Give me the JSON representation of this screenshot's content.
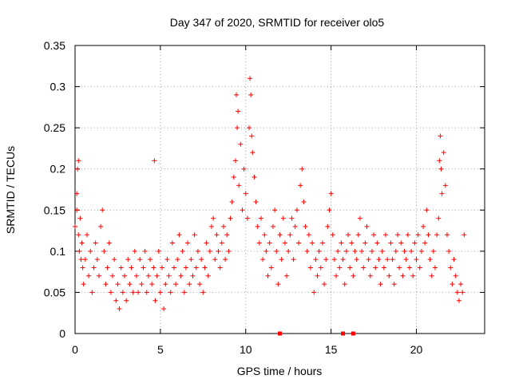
{
  "chart_data": {
    "type": "scatter",
    "title": "Day 347 of 2020, SRMTID for receiver olo5",
    "xlabel": "GPS time / hours",
    "ylabel": "SRMTID / TECUs",
    "xlim": [
      0,
      24
    ],
    "ylim": [
      0,
      0.35
    ],
    "xticks": [
      0,
      5,
      10,
      15,
      20
    ],
    "yticks": [
      0,
      0.05,
      0.1,
      0.15,
      0.2,
      0.25,
      0.3,
      0.35
    ],
    "ytick_labels": [
      "0",
      "0.05",
      "0.1",
      "0.15",
      "0.2",
      "0.25",
      "0.3",
      "0.35"
    ],
    "grid": true,
    "marker": "plus",
    "series_color": "#ff0000",
    "grid_color": "#a0a0a0",
    "series": [
      {
        "name": "SRMTID",
        "points": [
          [
            0.0,
            0.13
          ],
          [
            0.1,
            0.17
          ],
          [
            0.1,
            0.15
          ],
          [
            0.15,
            0.2
          ],
          [
            0.2,
            0.21
          ],
          [
            0.2,
            0.12
          ],
          [
            0.25,
            0.1
          ],
          [
            0.3,
            0.14
          ],
          [
            0.35,
            0.09
          ],
          [
            0.4,
            0.11
          ],
          [
            0.45,
            0.08
          ],
          [
            0.5,
            0.06
          ],
          [
            0.6,
            0.09
          ],
          [
            0.7,
            0.12
          ],
          [
            0.8,
            0.07
          ],
          [
            0.9,
            0.1
          ],
          [
            1.0,
            0.05
          ],
          [
            1.1,
            0.08
          ],
          [
            1.2,
            0.11
          ],
          [
            1.3,
            0.09
          ],
          [
            1.4,
            0.07
          ],
          [
            1.5,
            0.13
          ],
          [
            1.6,
            0.15
          ],
          [
            1.7,
            0.1
          ],
          [
            1.8,
            0.06
          ],
          [
            1.9,
            0.08
          ],
          [
            2.0,
            0.11
          ],
          [
            2.1,
            0.05
          ],
          [
            2.2,
            0.07
          ],
          [
            2.3,
            0.09
          ],
          [
            2.4,
            0.04
          ],
          [
            2.5,
            0.06
          ],
          [
            2.6,
            0.03
          ],
          [
            2.7,
            0.08
          ],
          [
            2.8,
            0.05
          ],
          [
            2.9,
            0.07
          ],
          [
            3.0,
            0.04
          ],
          [
            3.1,
            0.09
          ],
          [
            3.2,
            0.06
          ],
          [
            3.3,
            0.08
          ],
          [
            3.4,
            0.05
          ],
          [
            3.5,
            0.1
          ],
          [
            3.6,
            0.07
          ],
          [
            3.7,
            0.05
          ],
          [
            3.8,
            0.09
          ],
          [
            3.9,
            0.06
          ],
          [
            4.0,
            0.08
          ],
          [
            4.1,
            0.1
          ],
          [
            4.2,
            0.05
          ],
          [
            4.3,
            0.07
          ],
          [
            4.4,
            0.09
          ],
          [
            4.5,
            0.06
          ],
          [
            4.6,
            0.08
          ],
          [
            4.65,
            0.21
          ],
          [
            4.7,
            0.04
          ],
          [
            4.8,
            0.07
          ],
          [
            4.9,
            0.1
          ],
          [
            5.0,
            0.05
          ],
          [
            5.1,
            0.08
          ],
          [
            5.2,
            0.03
          ],
          [
            5.3,
            0.06
          ],
          [
            5.4,
            0.09
          ],
          [
            5.5,
            0.07
          ],
          [
            5.6,
            0.05
          ],
          [
            5.7,
            0.11
          ],
          [
            5.8,
            0.08
          ],
          [
            5.9,
            0.06
          ],
          [
            6.0,
            0.09
          ],
          [
            6.1,
            0.12
          ],
          [
            6.2,
            0.07
          ],
          [
            6.3,
            0.1
          ],
          [
            6.4,
            0.05
          ],
          [
            6.5,
            0.08
          ],
          [
            6.6,
            0.11
          ],
          [
            6.7,
            0.06
          ],
          [
            6.8,
            0.09
          ],
          [
            6.9,
            0.07
          ],
          [
            7.0,
            0.12
          ],
          [
            7.1,
            0.08
          ],
          [
            7.2,
            0.1
          ],
          [
            7.3,
            0.06
          ],
          [
            7.4,
            0.09
          ],
          [
            7.5,
            0.05
          ],
          [
            7.6,
            0.08
          ],
          [
            7.7,
            0.11
          ],
          [
            7.8,
            0.07
          ],
          [
            7.9,
            0.1
          ],
          [
            8.0,
            0.13
          ],
          [
            8.1,
            0.14
          ],
          [
            8.2,
            0.09
          ],
          [
            8.3,
            0.12
          ],
          [
            8.4,
            0.1
          ],
          [
            8.5,
            0.08
          ],
          [
            8.6,
            0.11
          ],
          [
            8.7,
            0.13
          ],
          [
            8.8,
            0.09
          ],
          [
            8.9,
            0.12
          ],
          [
            9.0,
            0.1
          ],
          [
            9.1,
            0.14
          ],
          [
            9.2,
            0.16
          ],
          [
            9.3,
            0.19
          ],
          [
            9.4,
            0.21
          ],
          [
            9.45,
            0.29
          ],
          [
            9.5,
            0.25
          ],
          [
            9.55,
            0.27
          ],
          [
            9.6,
            0.18
          ],
          [
            9.7,
            0.23
          ],
          [
            9.8,
            0.15
          ],
          [
            9.9,
            0.2
          ],
          [
            10.0,
            0.17
          ],
          [
            10.1,
            0.14
          ],
          [
            10.2,
            0.25
          ],
          [
            10.25,
            0.31
          ],
          [
            10.3,
            0.29
          ],
          [
            10.35,
            0.24
          ],
          [
            10.4,
            0.22
          ],
          [
            10.5,
            0.19
          ],
          [
            10.6,
            0.16
          ],
          [
            10.7,
            0.13
          ],
          [
            10.8,
            0.11
          ],
          [
            10.9,
            0.14
          ],
          [
            11.0,
            0.09
          ],
          [
            11.1,
            0.12
          ],
          [
            11.2,
            0.1
          ],
          [
            11.3,
            0.07
          ],
          [
            11.4,
            0.11
          ],
          [
            11.5,
            0.08
          ],
          [
            11.6,
            0.13
          ],
          [
            11.7,
            0.15
          ],
          [
            11.8,
            0.1
          ],
          [
            11.9,
            0.06
          ],
          [
            12.0,
            0.12
          ],
          [
            12.1,
            0.09
          ],
          [
            12.2,
            0.14
          ],
          [
            12.3,
            0.11
          ],
          [
            12.4,
            0.07
          ],
          [
            12.5,
            0.1
          ],
          [
            12.6,
            0.12
          ],
          [
            12.7,
            0.14
          ],
          [
            12.8,
            0.09
          ],
          [
            12.9,
            0.13
          ],
          [
            13.0,
            0.15
          ],
          [
            13.1,
            0.11
          ],
          [
            13.2,
            0.18
          ],
          [
            13.3,
            0.2
          ],
          [
            13.4,
            0.16
          ],
          [
            13.5,
            0.13
          ],
          [
            13.6,
            0.1
          ],
          [
            13.7,
            0.12
          ],
          [
            13.8,
            0.08
          ],
          [
            13.9,
            0.11
          ],
          [
            14.0,
            0.05
          ],
          [
            14.1,
            0.09
          ],
          [
            14.2,
            0.07
          ],
          [
            14.3,
            0.1
          ],
          [
            14.4,
            0.08
          ],
          [
            14.5,
            0.11
          ],
          [
            14.6,
            0.06
          ],
          [
            14.7,
            0.09
          ],
          [
            14.8,
            0.13
          ],
          [
            14.9,
            0.15
          ],
          [
            15.0,
            0.17
          ],
          [
            15.1,
            0.12
          ],
          [
            15.2,
            0.09
          ],
          [
            15.3,
            0.07
          ],
          [
            15.4,
            0.1
          ],
          [
            15.5,
            0.08
          ],
          [
            15.6,
            0.11
          ],
          [
            15.7,
            0.09
          ],
          [
            15.8,
            0.06
          ],
          [
            15.9,
            0.1
          ],
          [
            16.0,
            0.12
          ],
          [
            16.1,
            0.08
          ],
          [
            16.2,
            0.11
          ],
          [
            16.3,
            0.07
          ],
          [
            16.4,
            0.1
          ],
          [
            16.5,
            0.09
          ],
          [
            16.6,
            0.12
          ],
          [
            16.7,
            0.14
          ],
          [
            16.8,
            0.1
          ],
          [
            16.9,
            0.08
          ],
          [
            17.0,
            0.11
          ],
          [
            17.1,
            0.13
          ],
          [
            17.2,
            0.09
          ],
          [
            17.3,
            0.07
          ],
          [
            17.4,
            0.1
          ],
          [
            17.5,
            0.12
          ],
          [
            17.6,
            0.08
          ],
          [
            17.7,
            0.11
          ],
          [
            17.8,
            0.09
          ],
          [
            17.9,
            0.06
          ],
          [
            18.0,
            0.1
          ],
          [
            18.1,
            0.08
          ],
          [
            18.2,
            0.12
          ],
          [
            18.3,
            0.09
          ],
          [
            18.4,
            0.07
          ],
          [
            18.5,
            0.11
          ],
          [
            18.6,
            0.09
          ],
          [
            18.7,
            0.06
          ],
          [
            18.8,
            0.1
          ],
          [
            18.9,
            0.12
          ],
          [
            19.0,
            0.08
          ],
          [
            19.1,
            0.11
          ],
          [
            19.2,
            0.07
          ],
          [
            19.3,
            0.1
          ],
          [
            19.4,
            0.09
          ],
          [
            19.5,
            0.12
          ],
          [
            19.6,
            0.08
          ],
          [
            19.7,
            0.1
          ],
          [
            19.8,
            0.07
          ],
          [
            19.9,
            0.11
          ],
          [
            20.0,
            0.09
          ],
          [
            20.1,
            0.12
          ],
          [
            20.2,
            0.08
          ],
          [
            20.3,
            0.1
          ],
          [
            20.4,
            0.13
          ],
          [
            20.5,
            0.11
          ],
          [
            20.6,
            0.15
          ],
          [
            20.7,
            0.12
          ],
          [
            20.8,
            0.09
          ],
          [
            20.9,
            0.07
          ],
          [
            21.0,
            0.1
          ],
          [
            21.1,
            0.08
          ],
          [
            21.2,
            0.12
          ],
          [
            21.3,
            0.14
          ],
          [
            21.35,
            0.21
          ],
          [
            21.4,
            0.24
          ],
          [
            21.45,
            0.2
          ],
          [
            21.5,
            0.17
          ],
          [
            21.6,
            0.22
          ],
          [
            21.7,
            0.18
          ],
          [
            21.8,
            0.12
          ],
          [
            21.9,
            0.1
          ],
          [
            22.0,
            0.08
          ],
          [
            22.1,
            0.06
          ],
          [
            22.2,
            0.09
          ],
          [
            22.3,
            0.07
          ],
          [
            22.4,
            0.05
          ],
          [
            22.5,
            0.04
          ],
          [
            22.6,
            0.06
          ],
          [
            22.7,
            0.05
          ],
          [
            22.8,
            0.12
          ]
        ]
      }
    ],
    "axis_markers": [
      12.0,
      15.7,
      16.3
    ]
  }
}
